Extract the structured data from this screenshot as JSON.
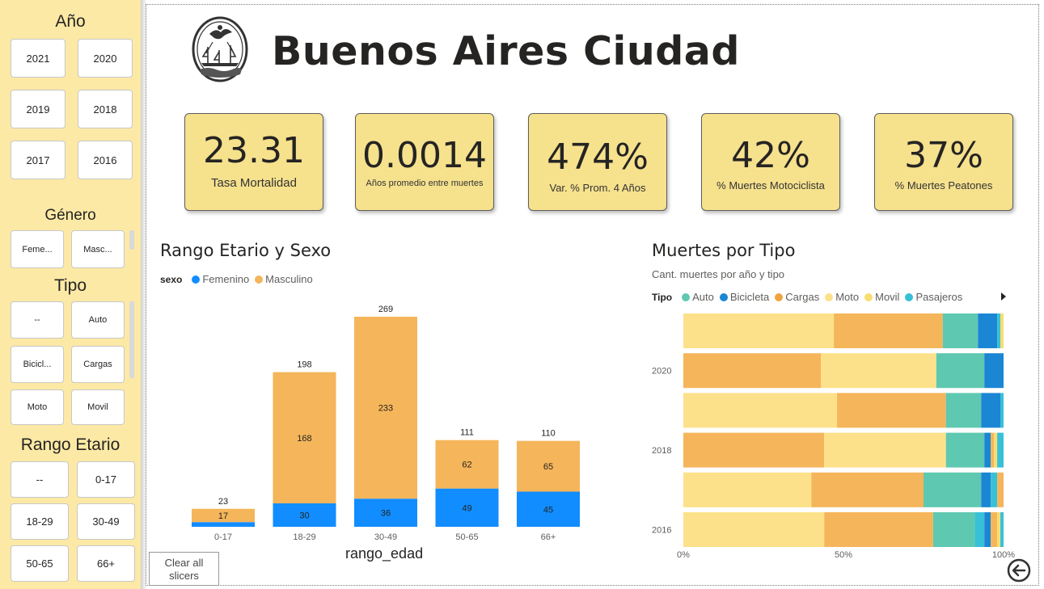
{
  "header": {
    "title": "Buenos Aires Ciudad"
  },
  "slicers": {
    "year": {
      "title": "Año",
      "items": [
        "2021",
        "2020",
        "2019",
        "2018",
        "2017",
        "2016"
      ]
    },
    "gender": {
      "title": "Género",
      "items": [
        "Feme...",
        "Masc..."
      ]
    },
    "type": {
      "title": "Tipo",
      "items": [
        "--",
        "Auto",
        "Bicicl...",
        "Cargas",
        "Moto",
        "Movil"
      ]
    },
    "age": {
      "title": "Rango Etario",
      "items": [
        "--",
        "0-17",
        "18-29",
        "30-49",
        "50-65",
        "66+"
      ]
    }
  },
  "kpis": [
    {
      "value": "23.31",
      "label": "Tasa Mortalidad"
    },
    {
      "value": "0.0014",
      "label": "Años promedio entre muertes"
    },
    {
      "value": "474%",
      "label": "Var. % Prom. 4 Años"
    },
    {
      "value": "42%",
      "label": "% Muertes Motociclista"
    },
    {
      "value": "37%",
      "label": "% Muertes Peatones"
    }
  ],
  "age_chart": {
    "title": "Rango Etario y Sexo",
    "legend_title": "sexo",
    "legend_items": [
      "Femenino",
      "Masculino"
    ],
    "xlabel": "rango_edad"
  },
  "type_chart": {
    "title": "Muertes por Tipo",
    "subtitle": "Cant. muertes por año y tipo",
    "legend_title": "Tipo",
    "legend_items": [
      "Auto",
      "Bicicleta",
      "Cargas",
      "Moto",
      "Movil",
      "Pasajeros"
    ]
  },
  "buttons": {
    "clear": "Clear all slicers"
  },
  "colors": {
    "femenino": "#118dff",
    "masculino": "#f5b55a",
    "auto": "#5ec8b0",
    "bicicleta": "#1a86d4",
    "cargas": "#f5b55a",
    "moto": "#fde18a",
    "movil": "#f9dd6f",
    "pasajeros": "#38c0d8",
    "sidebar": "#fce9a5",
    "kpi": "#f6e18d"
  },
  "chart_data": [
    {
      "type": "bar",
      "stacked": true,
      "categories": [
        "0-17",
        "18-29",
        "30-49",
        "50-65",
        "66+"
      ],
      "series": [
        {
          "name": "Femenino",
          "values": [
            6,
            30,
            36,
            49,
            45
          ],
          "labels": [
            "",
            "30",
            "36",
            "49",
            "45"
          ]
        },
        {
          "name": "Masculino",
          "values": [
            17,
            168,
            233,
            62,
            65
          ],
          "labels": [
            "17",
            "168",
            "233",
            "62",
            "65"
          ]
        }
      ],
      "totals": [
        23,
        198,
        269,
        111,
        110
      ],
      "ylim": [
        0,
        269
      ]
    },
    {
      "type": "bar",
      "orientation": "horizontal",
      "stacked_percent": true,
      "categories": [
        "2021",
        "2020",
        "2019",
        "2018",
        "2017",
        "2016"
      ],
      "tick_labels": [
        "",
        "2020",
        "",
        "2018",
        "",
        "2016"
      ],
      "x_ticks": [
        "0%",
        "50%",
        "100%"
      ],
      "segments": [
        [
          {
            "series": "Moto",
            "value": 47
          },
          {
            "series": "Cargas",
            "value": 34
          },
          {
            "series": "Auto",
            "value": 11
          },
          {
            "series": "Bicicleta",
            "value": 6
          },
          {
            "series": "Pasajeros",
            "value": 1
          },
          {
            "series": "Movil",
            "value": 1
          }
        ],
        [
          {
            "series": "Cargas",
            "value": 43
          },
          {
            "series": "Moto",
            "value": 36
          },
          {
            "series": "Auto",
            "value": 15
          },
          {
            "series": "Bicicleta",
            "value": 6
          }
        ],
        [
          {
            "series": "Moto",
            "value": 48
          },
          {
            "series": "Cargas",
            "value": 34
          },
          {
            "series": "Auto",
            "value": 11
          },
          {
            "series": "Bicicleta",
            "value": 6
          },
          {
            "series": "Pasajeros",
            "value": 1
          }
        ],
        [
          {
            "series": "Cargas",
            "value": 44
          },
          {
            "series": "Moto",
            "value": 38
          },
          {
            "series": "Auto",
            "value": 12
          },
          {
            "series": "Bicicleta",
            "value": 2
          },
          {
            "series": "Cargas",
            "value": 1
          },
          {
            "series": "Movil",
            "value": 1
          },
          {
            "series": "Pasajeros",
            "value": 2
          }
        ],
        [
          {
            "series": "Moto",
            "value": 40
          },
          {
            "series": "Cargas",
            "value": 35
          },
          {
            "series": "Auto",
            "value": 18
          },
          {
            "series": "Bicicleta",
            "value": 3
          },
          {
            "series": "Pasajeros",
            "value": 2
          },
          {
            "series": "Cargas",
            "value": 2
          }
        ],
        [
          {
            "series": "Moto",
            "value": 44
          },
          {
            "series": "Cargas",
            "value": 34
          },
          {
            "series": "Auto",
            "value": 13
          },
          {
            "series": "Pasajeros",
            "value": 3
          },
          {
            "series": "Bicicleta",
            "value": 2
          },
          {
            "series": "Cargas",
            "value": 2
          },
          {
            "series": "Movil",
            "value": 1
          },
          {
            "series": "Pasajeros",
            "value": 1
          }
        ]
      ]
    }
  ]
}
